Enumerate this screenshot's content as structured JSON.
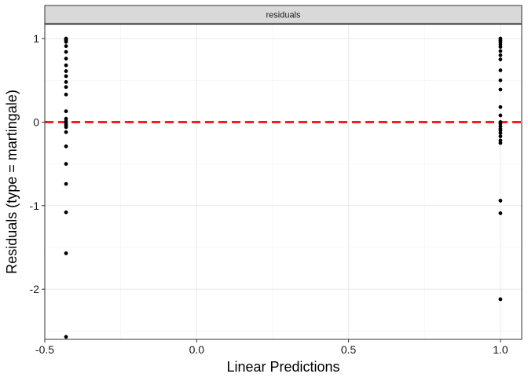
{
  "chart_data": {
    "type": "scatter",
    "facet_label": "residuals",
    "xlabel": "Linear Predictions",
    "ylabel": "Residuals (type = martingale)",
    "xlim": [
      -0.5,
      1.07
    ],
    "ylim": [
      -2.6,
      1.17
    ],
    "x_ticks": [
      {
        "value": -0.5,
        "label": "-0.5"
      },
      {
        "value": 0.0,
        "label": "0.0"
      },
      {
        "value": 0.5,
        "label": "0.5"
      },
      {
        "value": 1.0,
        "label": "1.0"
      }
    ],
    "y_ticks": [
      {
        "value": 1,
        "label": "1"
      },
      {
        "value": 0,
        "label": "0"
      },
      {
        "value": -1,
        "label": "-1"
      },
      {
        "value": -2,
        "label": "-2"
      }
    ],
    "x_minor_ticks": [
      -0.25,
      0.25,
      0.75
    ],
    "y_minor_ticks": [
      0.5,
      -0.5,
      -1.5,
      -2.5
    ],
    "grid": true,
    "reference_line": {
      "y": 0,
      "color": "#ff0000",
      "style": "dashed"
    },
    "point_color": "#000000",
    "groups": [
      {
        "x": -0.43,
        "y": [
          1.0,
          0.99,
          0.98,
          0.96,
          0.91,
          0.84,
          0.76,
          0.68,
          0.61,
          0.55,
          0.48,
          0.42,
          0.33,
          0.13,
          0.04,
          0.01,
          -0.02,
          -0.04,
          -0.06,
          -0.12,
          -0.29,
          -0.5,
          -0.74,
          -1.08,
          -1.57,
          -2.57
        ]
      },
      {
        "x": 1.0,
        "y": [
          1.0,
          0.98,
          0.96,
          0.93,
          0.9,
          0.85,
          0.8,
          0.75,
          0.62,
          0.5,
          0.39,
          0.18,
          0.08,
          0.0,
          -0.02,
          -0.05,
          -0.08,
          -0.1,
          -0.13,
          -0.17,
          -0.22,
          -0.25,
          -0.94,
          -1.09,
          -2.12
        ]
      }
    ]
  }
}
